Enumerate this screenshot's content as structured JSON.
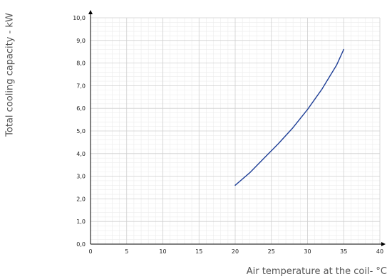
{
  "chart_data": {
    "type": "line",
    "title": "",
    "xlabel": "Air temperature at the coil- °C",
    "ylabel": "Total cooling capacity - kW",
    "xlim": [
      0,
      40
    ],
    "ylim": [
      0,
      10
    ],
    "grid": true,
    "x_ticks": [
      "0",
      "5",
      "10",
      "15",
      "20",
      "25",
      "30",
      "35",
      "40"
    ],
    "y_ticks": [
      "0,0",
      "1,0",
      "2,0",
      "3,0",
      "4,0",
      "5,0",
      "6,0",
      "7,0",
      "8,0",
      "9,0",
      "10,0"
    ],
    "series": [
      {
        "color": "#1f3f96",
        "x": [
          20,
          22,
          24,
          26,
          28,
          30,
          32,
          34,
          35
        ],
        "y": [
          2.6,
          3.15,
          3.8,
          4.45,
          5.15,
          5.95,
          6.85,
          7.9,
          8.6
        ]
      }
    ]
  }
}
